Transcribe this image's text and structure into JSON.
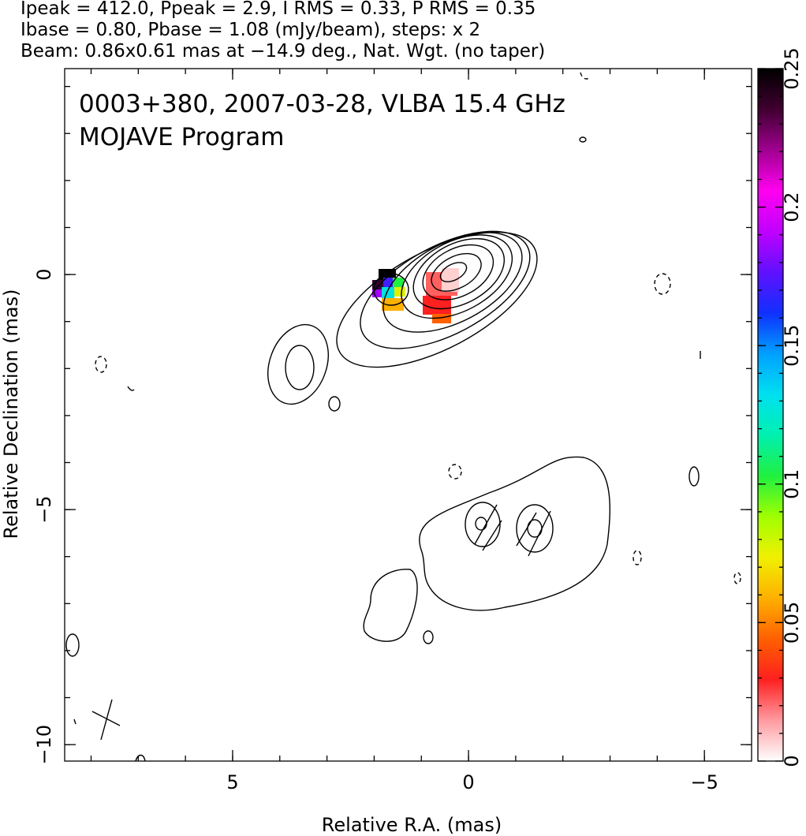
{
  "header": {
    "lines": [
      "Ipeak = 412.0, Ppeak = 2.9, I RMS = 0.33, P RMS = 0.35",
      "Ibase = 0.80, Pbase = 1.08 (mJy/beam), steps: x 2",
      "Beam: 0.86x0.61 mas at −14.9 deg., Nat. Wgt. (no taper)"
    ]
  },
  "chart_data": {
    "type": "contour",
    "title": "0003+380, 2007-03-28, VLBA 15.4 GHz",
    "subtitle": "MOJAVE Program",
    "x_label": "Relative R.A. (mas)",
    "y_label": "Relative Declination (mas)",
    "xlim": [
      8.56,
      -6.0
    ],
    "ylim": [
      -10.35,
      4.38
    ],
    "xticks": [
      5,
      0,
      {
        "value": -5,
        "label": "−5"
      }
    ],
    "yticks": [
      0,
      {
        "value": -5,
        "label": "−5"
      },
      {
        "value": -10,
        "label": "−10"
      }
    ],
    "colorbar": {
      "lim": [
        0,
        0.25
      ],
      "ticks": [
        0,
        0.05,
        0.1,
        0.15,
        0.2,
        0.25
      ],
      "colors": [
        "#ffffff",
        "#ff9aa0",
        "#ff2020",
        "#ff6000",
        "#ffb000",
        "#f0f000",
        "#a0ff00",
        "#20f040",
        "#00f0b0",
        "#00e0f0",
        "#00a0ff",
        "#1030ff",
        "#6010ff",
        "#c000ff",
        "#ff00f0",
        "#a00090",
        "#400030",
        "#000000"
      ]
    }
  }
}
